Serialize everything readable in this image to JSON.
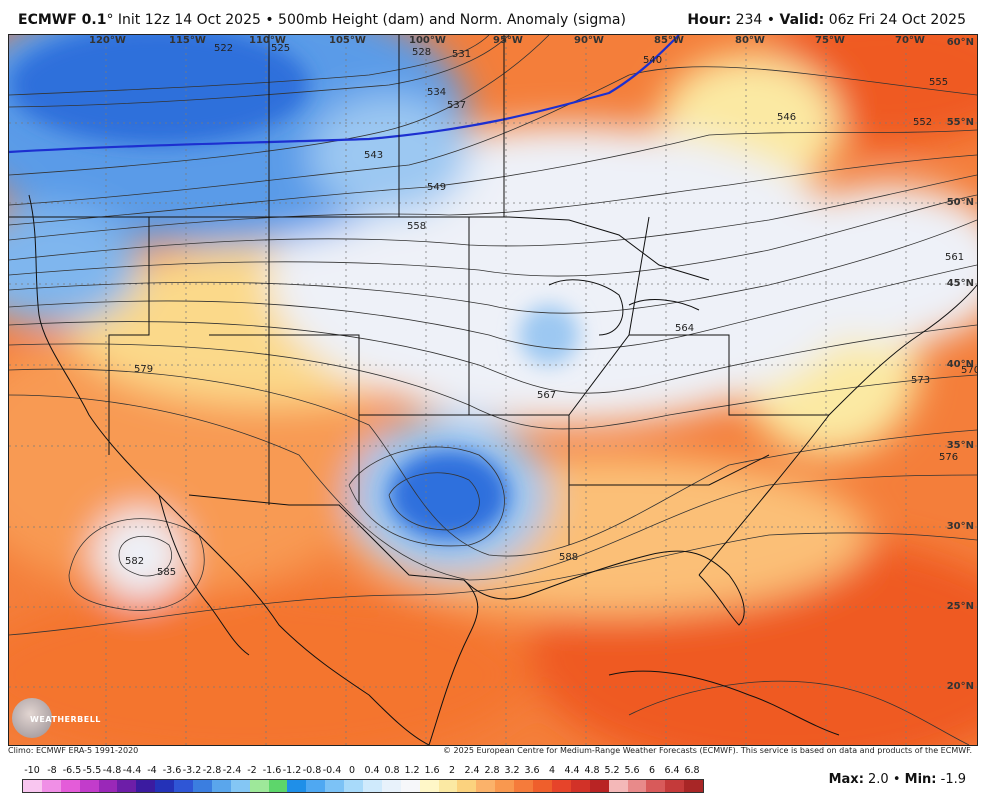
{
  "header": {
    "model": "ECMWF 0.1",
    "degree": "°",
    "init_desc": " Init 12z 14 Oct 2025 • 500mb Height (dam) and Norm. Anomaly (sigma)",
    "hour_label": "Hour:",
    "hour_value": " 234 • ",
    "valid_label": "Valid:",
    "valid_value": " 06z Fri 24 Oct 2025"
  },
  "map": {
    "lon_labels": [
      "120°W",
      "115°W",
      "110°W",
      "105°W",
      "100°W",
      "95°W",
      "90°W",
      "85°W",
      "80°W",
      "75°W",
      "70°W"
    ],
    "lat_labels": [
      "60°N",
      "55°N",
      "50°N",
      "45°N",
      "40°N",
      "35°N",
      "30°N",
      "25°N",
      "20°N"
    ],
    "contour_labels": [
      "522",
      "525",
      "528",
      "531",
      "534",
      "537",
      "540",
      "543",
      "546",
      "549",
      "552",
      "555",
      "558",
      "561",
      "564",
      "567",
      "570",
      "573",
      "576",
      "579",
      "582",
      "585",
      "588"
    ],
    "logo_text": "WEATHERBELL",
    "colors": {
      "deep_blue": "#1f5fd6",
      "blue": "#4a8fe8",
      "light_blue": "#9cc8f2",
      "pale": "#eef1f8",
      "yellow": "#fbe9a3",
      "light_orange": "#fbb26a",
      "orange": "#f78c45",
      "deep_orange": "#ee5a20"
    }
  },
  "footer": {
    "climo": "Climo: ECMWF ERA-5 1991-2020",
    "copyright": "© 2025 European Centre for Medium-Range Weather Forecasts (ECMWF). This service is based on data and products of the ECMWF."
  },
  "colorbar": {
    "labels": [
      "-10",
      "-8",
      "-6.5",
      "-5.5",
      "-4.8",
      "-4.4",
      "-4",
      "-3.6",
      "-3.2",
      "-2.8",
      "-2.4",
      "-2",
      "-1.6",
      "-1.2",
      "-0.8",
      "-0.4",
      "0",
      "0.4",
      "0.8",
      "1.2",
      "1.6",
      "2",
      "2.4",
      "2.8",
      "3.2",
      "3.6",
      "4",
      "4.4",
      "4.8",
      "5.2",
      "5.6",
      "6",
      "6.4",
      "6.8"
    ],
    "colors": [
      "#f9c6f0",
      "#f08fe6",
      "#e45cd9",
      "#c23ccb",
      "#9a28b8",
      "#6d1ea8",
      "#3b1ba0",
      "#2432b8",
      "#2f56d6",
      "#3b7ee0",
      "#5aa6ec",
      "#84c6f4",
      "#9ee89a",
      "#5dd66b",
      "#1f8fe8",
      "#4fa8f2",
      "#7cc2f6",
      "#a8dafa",
      "#cfeafc",
      "#e8f2fb",
      "#f6f7fa",
      "#fff7c8",
      "#fbe9a3",
      "#fbd27e",
      "#fbb26a",
      "#f9984f",
      "#f57b3b",
      "#ef5f2c",
      "#e6442a",
      "#d23228",
      "#b92424",
      "#f4b8b8",
      "#e88a8a",
      "#d85a5a",
      "#c43a3a",
      "#a82626"
    ]
  },
  "stats": {
    "max_label": "Max:",
    "max_value": " 2.0 • ",
    "min_label": "Min:",
    "min_value": " -1.9"
  }
}
